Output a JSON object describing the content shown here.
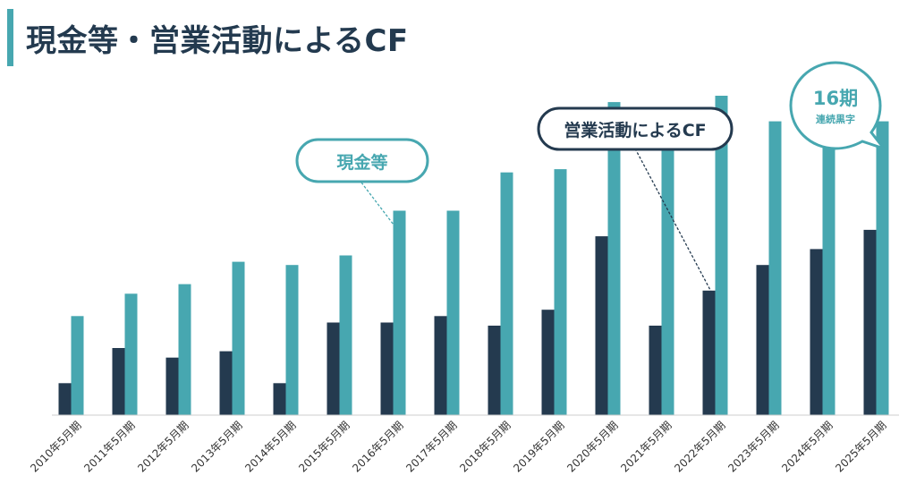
{
  "title": "現金等・営業活動によるCF",
  "chart_data": {
    "type": "bar",
    "categories": [
      "2010年5月期",
      "2011年5月期",
      "2012年5月期",
      "2013年5月期",
      "2014年5月期",
      "2015年5月期",
      "2016年5月期",
      "2017年5月期",
      "2018年5月期",
      "2019年5月期",
      "2020年5月期",
      "2021年5月期",
      "2022年5月期",
      "2023年5月期",
      "2024年5月期",
      "2025年5月期"
    ],
    "series": [
      {
        "name": "営業活動によるCF",
        "color": "#243a4f",
        "values": [
          10,
          21,
          18,
          20,
          10,
          29,
          29,
          31,
          28,
          33,
          56,
          28,
          39,
          47,
          52,
          58
        ]
      },
      {
        "name": "現金等",
        "color": "#47a7b0",
        "values": [
          31,
          38,
          41,
          48,
          47,
          50,
          64,
          64,
          76,
          77,
          98,
          92,
          100,
          92,
          97,
          92
        ]
      }
    ],
    "ylim": [
      0,
      100
    ],
    "grid": false,
    "legend": "callouts"
  },
  "callouts": {
    "cash": "現金等",
    "cf": "営業活動によるCF",
    "streak_number": "16期",
    "streak_label": "連続黒字"
  },
  "colors": {
    "dark": "#243a4f",
    "teal": "#47a7b0",
    "axis": "#cccccc"
  }
}
